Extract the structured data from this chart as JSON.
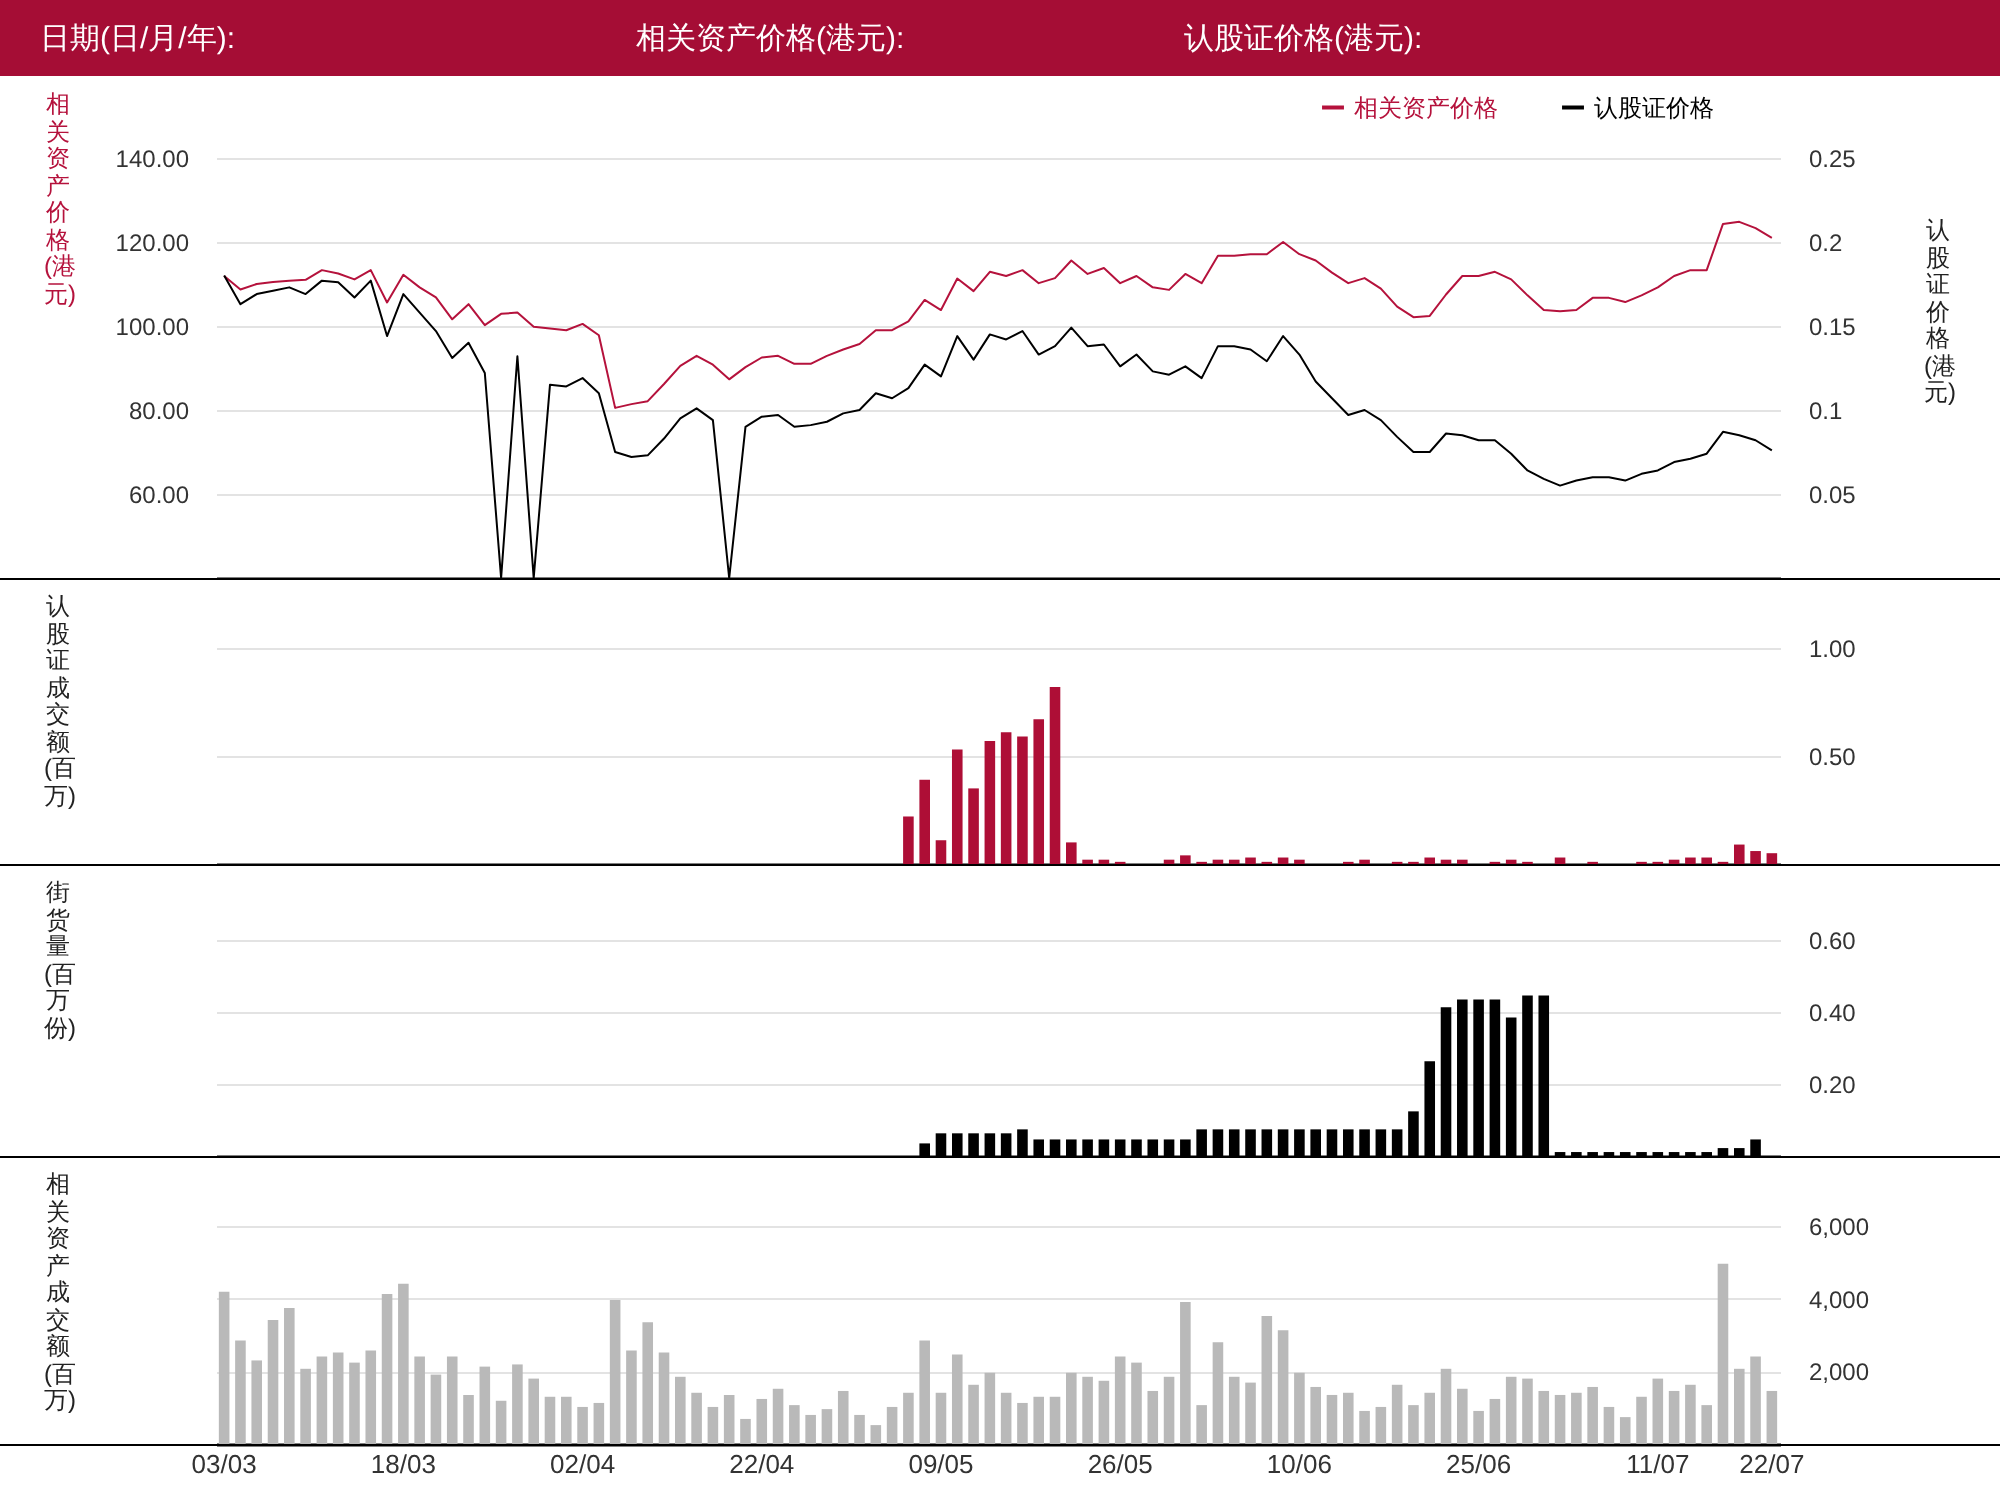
{
  "chart_data": [
    {
      "type": "line",
      "annotations": [
        "日期(日/月/年):",
        "相关资产价格(港元):",
        "认股证价格(港元):"
      ],
      "ylabel": "相关资产价格(港元)",
      "y2label": "认股证价格(港元)",
      "categories": [
        null,
        null,
        null,
        null,
        null,
        null,
        null,
        null,
        null,
        null,
        null,
        null,
        null,
        null,
        null,
        null,
        null,
        null,
        null,
        null,
        null,
        null,
        null,
        null,
        null,
        null,
        null,
        null,
        null,
        null,
        null,
        null,
        null,
        null,
        null,
        null,
        null,
        null,
        null,
        null,
        null,
        null,
        null,
        null,
        null,
        null,
        null,
        null,
        null,
        null,
        null,
        null,
        null,
        null,
        null,
        null,
        null,
        null,
        null,
        null,
        null,
        null,
        null,
        null,
        null,
        null,
        null,
        null,
        null,
        null,
        null,
        null,
        null,
        null,
        null,
        null,
        null,
        null,
        null,
        null,
        null,
        null,
        null,
        null,
        null,
        null,
        null,
        null,
        null,
        null,
        null,
        null,
        null,
        null,
        null,
        null
      ],
      "ylim": [
        40,
        140
      ],
      "yticks": [
        {
          "value": 60,
          "label": "60.00"
        },
        {
          "value": 80,
          "label": "80.00"
        },
        {
          "value": 100,
          "label": "100.00"
        },
        {
          "value": 120,
          "label": "120.00"
        },
        {
          "value": 140,
          "label": "140.00"
        }
      ],
      "y2lim": [
        0,
        0.25
      ],
      "y2ticks": [
        0.05,
        0.1,
        0.15,
        0.2,
        0.25
      ],
      "grid": "y",
      "legend": "top right",
      "tick_labels": "y",
      "marker": "none",
      "line_style": "solid",
      "series": [
        {
          "name": "相关资产价格",
          "color": "#b5123c",
          "values": [
            111.9,
            108.7,
            110.0,
            110.5,
            110.8,
            111.0,
            113.3,
            112.5,
            111.1,
            113.3,
            105.6,
            112.2,
            109.2,
            106.8,
            101.6,
            105.2,
            100.2,
            102.9,
            103.2,
            99.8,
            99.4,
            99.0,
            100.5,
            97.8,
            80.5,
            81.4,
            82.1,
            86.2,
            90.5,
            92.9,
            90.8,
            87.3,
            90.2,
            92.5,
            92.9,
            91.0,
            91.0,
            92.9,
            94.4,
            95.7,
            99.0,
            99.0,
            101.1,
            106.2,
            103.8,
            111.3,
            108.3,
            112.9,
            111.9,
            113.3,
            110.2,
            111.4,
            115.6,
            112.4,
            113.8,
            110.2,
            111.9,
            109.2,
            108.6,
            112.4,
            110.2,
            116.7,
            116.7,
            117.1,
            117.1,
            120.0,
            117.1,
            115.6,
            112.7,
            110.2,
            111.4,
            108.9,
            104.6,
            102.1,
            102.4,
            107.5,
            111.9,
            111.9,
            112.9,
            111.1,
            107.3,
            103.8,
            103.5,
            103.8,
            106.7,
            106.7,
            105.7,
            107.3,
            109.2,
            111.9,
            113.3,
            113.3,
            124.3,
            124.8,
            123.3,
            121.0
          ]
        },
        {
          "name": "认股证价格",
          "color": "#000000",
          "axis": "y2",
          "values": [
            0.18,
            0.163,
            0.169,
            0.171,
            0.173,
            0.169,
            0.177,
            0.176,
            0.167,
            0.177,
            0.144,
            0.169,
            0.158,
            0.147,
            0.131,
            0.14,
            0.122,
            0,
            0.132,
            0,
            0.115,
            0.114,
            0.119,
            0.11,
            0.075,
            0.072,
            0.073,
            0.083,
            0.095,
            0.101,
            0.094,
            0,
            0.09,
            0.096,
            0.097,
            0.09,
            0.091,
            0.093,
            0.098,
            0.1,
            0.11,
            0.107,
            0.113,
            0.127,
            0.12,
            0.144,
            0.13,
            0.145,
            0.142,
            0.147,
            0.133,
            0.138,
            0.149,
            0.138,
            0.139,
            0.126,
            0.133,
            0.123,
            0.121,
            0.126,
            0.119,
            0.138,
            0.138,
            0.136,
            0.129,
            0.144,
            0.133,
            0.117,
            0.107,
            0.097,
            0.1,
            0.094,
            0.084,
            0.075,
            0.075,
            0.086,
            0.085,
            0.082,
            0.082,
            0.074,
            0.064,
            0.059,
            0.055,
            0.058,
            0.06,
            0.06,
            0.058,
            0.062,
            0.064,
            0.069,
            0.071,
            0.074,
            0.087,
            0.085,
            0.082,
            0.076
          ]
        }
      ]
    },
    {
      "type": "bar",
      "ylabel": "认股证成交额(百万)",
      "categories": [
        null,
        null,
        null,
        null,
        null,
        null,
        null,
        null,
        null,
        null,
        null,
        null,
        null,
        null,
        null,
        null,
        null,
        null,
        null,
        null,
        null,
        null,
        null,
        null,
        null,
        null,
        null,
        null,
        null,
        null,
        null,
        null,
        null,
        null,
        null,
        null,
        null,
        null,
        null,
        null,
        null,
        null,
        null,
        null,
        null,
        null,
        null,
        null,
        null,
        null,
        null,
        null,
        null,
        null,
        null,
        null,
        null,
        null,
        null,
        null,
        null,
        null,
        null,
        null,
        null,
        null,
        null,
        null,
        null,
        null,
        null,
        null,
        null,
        null,
        null,
        null,
        null,
        null,
        null,
        null,
        null,
        null,
        null,
        null,
        null,
        null,
        null,
        null,
        null,
        null,
        null,
        null,
        null,
        null,
        null,
        null
      ],
      "ylim": [
        0,
        1
      ],
      "yticks": [
        {
          "value": 0.5,
          "label": "0.50"
        },
        {
          "value": 1,
          "label": "1.00"
        }
      ],
      "grid": "y",
      "tick_labels": "y",
      "color": "#ae0e36",
      "values": [
        null,
        null,
        null,
        null,
        null,
        null,
        null,
        null,
        null,
        null,
        null,
        null,
        null,
        null,
        null,
        null,
        null,
        null,
        null,
        null,
        null,
        null,
        null,
        null,
        null,
        null,
        null,
        null,
        null,
        null,
        null,
        null,
        null,
        null,
        null,
        null,
        null,
        null,
        null,
        null,
        null,
        null,
        0.22,
        0.39,
        0.11,
        0.53,
        0.35,
        0.57,
        0.61,
        0.59,
        0.67,
        0.82,
        0.1,
        0.02,
        0.02,
        0.01,
        0,
        0,
        0.02,
        0.04,
        0.01,
        0.02,
        0.02,
        0.03,
        0.01,
        0.03,
        0.02,
        0,
        0,
        0.01,
        0.02,
        0,
        0.01,
        0.01,
        0.03,
        0.02,
        0.02,
        0,
        0.01,
        0.02,
        0.01,
        0,
        0.03,
        0,
        0.01,
        0,
        0,
        0.01,
        0.01,
        0.02,
        0.03,
        0.03,
        0.01,
        0.09,
        0.06,
        0.05
      ]
    },
    {
      "type": "bar",
      "ylabel": "街货量(百万份)",
      "categories": [
        null,
        null,
        null,
        null,
        null,
        null,
        null,
        null,
        null,
        null,
        null,
        null,
        null,
        null,
        null,
        null,
        null,
        null,
        null,
        null,
        null,
        null,
        null,
        null,
        null,
        null,
        null,
        null,
        null,
        null,
        null,
        null,
        null,
        null,
        null,
        null,
        null,
        null,
        null,
        null,
        null,
        null,
        null,
        null,
        null,
        null,
        null,
        null,
        null,
        null,
        null,
        null,
        null,
        null,
        null,
        null,
        null,
        null,
        null,
        null,
        null,
        null,
        null,
        null,
        null,
        null,
        null,
        null,
        null,
        null,
        null,
        null,
        null,
        null,
        null,
        null,
        null,
        null,
        null,
        null,
        null,
        null,
        null,
        null,
        null,
        null,
        null,
        null,
        null,
        null,
        null,
        null,
        null,
        null,
        null,
        null
      ],
      "ylim": [
        0,
        0.6
      ],
      "yticks": [
        {
          "value": 0.2,
          "label": "0.20"
        },
        {
          "value": 0.4,
          "label": "0.40"
        },
        {
          "value": 0.6,
          "label": "0.60"
        }
      ],
      "grid": "y",
      "tick_labels": "y",
      "color": "#000000",
      "values": [
        null,
        null,
        null,
        null,
        null,
        null,
        null,
        null,
        null,
        null,
        null,
        null,
        null,
        null,
        null,
        null,
        null,
        null,
        null,
        null,
        null,
        null,
        null,
        null,
        null,
        null,
        null,
        null,
        null,
        null,
        null,
        null,
        null,
        null,
        null,
        null,
        null,
        null,
        null,
        null,
        null,
        null,
        null,
        0.035,
        0.063,
        0.063,
        0.063,
        0.063,
        0.063,
        0.074,
        0.046,
        0.046,
        0.046,
        0.046,
        0.046,
        0.046,
        0.046,
        0.046,
        0.046,
        0.046,
        0.074,
        0.074,
        0.074,
        0.074,
        0.074,
        0.074,
        0.074,
        0.074,
        0.074,
        0.074,
        0.074,
        0.074,
        0.074,
        0.124,
        0.263,
        0.413,
        0.435,
        0.435,
        0.435,
        0.385,
        0.446,
        0.446,
        0.011,
        0.011,
        0.011,
        0.011,
        0.011,
        0.011,
        0.011,
        0.011,
        0.011,
        0.011,
        0.022,
        0.022,
        0.046,
        null
      ]
    },
    {
      "type": "bar",
      "ylabel": "相关资产成交额(百万)",
      "categories": [
        "03/03",
        null,
        null,
        null,
        null,
        null,
        null,
        null,
        null,
        null,
        null,
        "18/03",
        null,
        null,
        null,
        null,
        null,
        null,
        null,
        null,
        null,
        null,
        "02/04",
        null,
        null,
        null,
        null,
        null,
        null,
        null,
        null,
        null,
        null,
        "22/04",
        null,
        null,
        null,
        null,
        null,
        null,
        null,
        null,
        null,
        null,
        "09/05",
        null,
        null,
        null,
        null,
        null,
        null,
        null,
        null,
        null,
        null,
        "26/05",
        null,
        null,
        null,
        null,
        null,
        null,
        null,
        null,
        null,
        null,
        "10/06",
        null,
        null,
        null,
        null,
        null,
        null,
        null,
        null,
        null,
        null,
        "25/06",
        null,
        null,
        null,
        null,
        null,
        null,
        null,
        null,
        null,
        null,
        "11/07",
        null,
        null,
        null,
        null,
        null,
        null,
        "22/07"
      ],
      "ylim": [
        0,
        6000
      ],
      "yticks": [
        {
          "value": 2000,
          "label": "2,000"
        },
        {
          "value": 4000,
          "label": "4,000"
        },
        {
          "value": 6000,
          "label": "6,000"
        }
      ],
      "grid": "y",
      "color": "#b9b9b9",
      "values": [
        4190,
        2850,
        2300,
        3410,
        3740,
        2070,
        2410,
        2520,
        2240,
        2570,
        4130,
        4410,
        2410,
        1910,
        2410,
        1350,
        2130,
        1190,
        2190,
        1800,
        1300,
        1300,
        1020,
        1130,
        3960,
        2570,
        3350,
        2520,
        1850,
        1410,
        1020,
        1350,
        690,
        1240,
        1520,
        1070,
        800,
        960,
        1460,
        800,
        520,
        1020,
        1410,
        2850,
        1410,
        2460,
        1630,
        1960,
        1410,
        1130,
        1300,
        1300,
        1960,
        1850,
        1740,
        2410,
        2240,
        1460,
        1850,
        3910,
        1070,
        2800,
        1850,
        1690,
        3520,
        3130,
        1960,
        1570,
        1350,
        1410,
        910,
        1020,
        1630,
        1070,
        1410,
        2070,
        1520,
        910,
        1240,
        1850,
        1800,
        1460,
        1350,
        1410,
        1570,
        1020,
        740,
        1300,
        1800,
        1460,
        1630,
        1070,
        4960,
        2070,
        2410,
        1460
      ]
    }
  ]
}
